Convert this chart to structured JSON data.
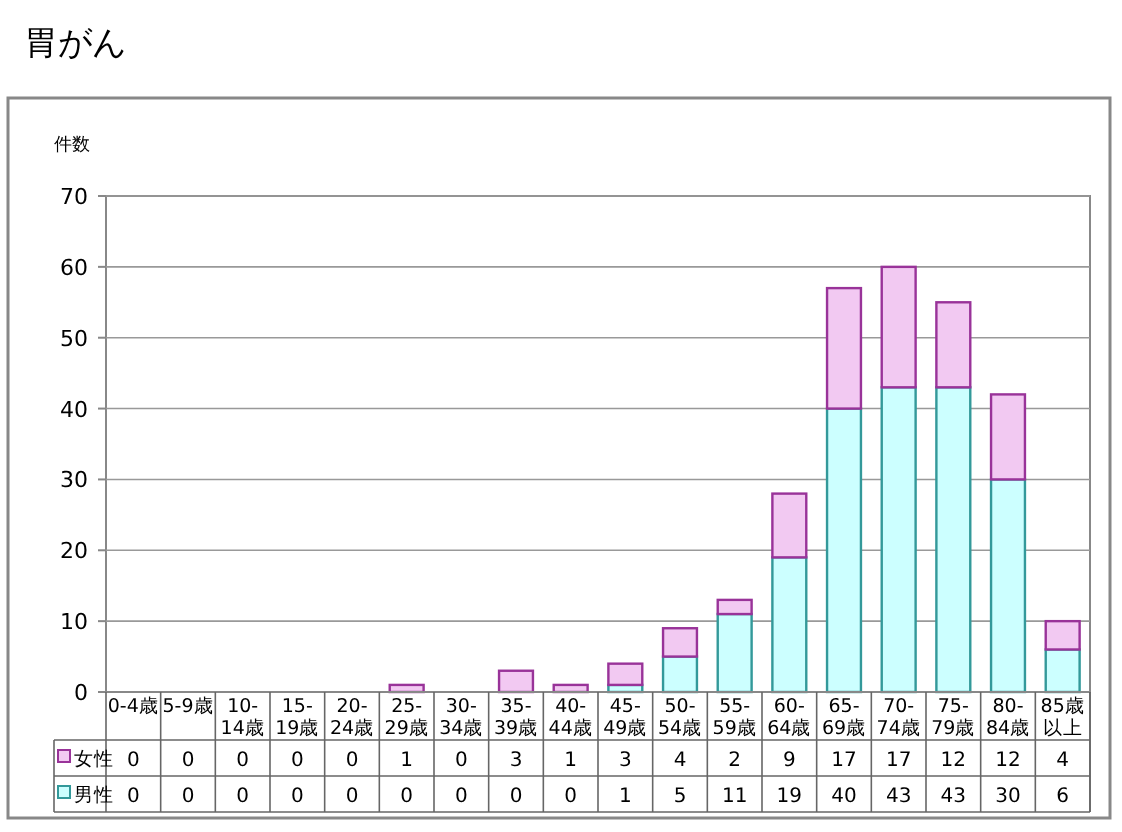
{
  "chart_data": {
    "type": "bar",
    "title": "胃がん",
    "ylabel": "件数",
    "stacked": true,
    "data_labels": true,
    "grid": "y",
    "legend": "bottom left",
    "categories": [
      "0-4歳",
      "5-9歳",
      "10-14歳",
      "15-19歳",
      "20-24歳",
      "25-29歳",
      "30-34歳",
      "35-39歳",
      "40-44歳",
      "45-49歳",
      "50-54歳",
      "55-59歳",
      "60-64歳",
      "65-69歳",
      "70-74歳",
      "75-79歳",
      "80-84歳",
      "85歳以上"
    ],
    "series": [
      {
        "name": "男性",
        "color": "#ccffff",
        "values": [
          0,
          0,
          0,
          0,
          0,
          0,
          0,
          0,
          0,
          1,
          5,
          11,
          19,
          40,
          43,
          43,
          30,
          6
        ]
      },
      {
        "name": "女性",
        "color": "#f2c9f2",
        "values": [
          0,
          0,
          0,
          0,
          0,
          1,
          0,
          3,
          1,
          3,
          4,
          2,
          9,
          17,
          17,
          12,
          12,
          4
        ]
      }
    ],
    "ylim": [
      0,
      70
    ],
    "yticks": [
      0,
      10,
      20,
      30,
      40,
      50,
      60,
      70
    ]
  }
}
